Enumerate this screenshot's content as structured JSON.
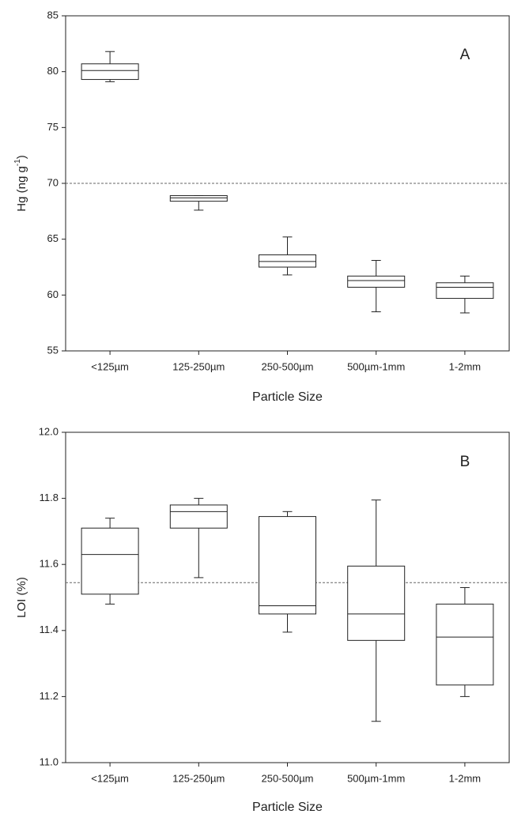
{
  "chart_data": [
    {
      "type": "box",
      "panel": "A",
      "xlabel": "Particle Size",
      "ylabel": "Hg (ng g",
      "ylabel_sup": "-1",
      "ylabel_end": ")",
      "categories": [
        "<125µm",
        "125-250µm",
        "250-500µm",
        "500µm-1mm",
        "1-2mm"
      ],
      "max": [
        81.8,
        68.9,
        65.2,
        63.1,
        61.7
      ],
      "q3": [
        80.7,
        68.9,
        63.6,
        61.7,
        61.1
      ],
      "median": [
        80.1,
        68.7,
        63.0,
        61.3,
        60.7
      ],
      "q1": [
        79.3,
        68.4,
        62.5,
        60.7,
        59.7
      ],
      "min": [
        79.1,
        67.6,
        61.8,
        58.5,
        58.4
      ],
      "reference_line": 70,
      "ylim": [
        55,
        85
      ],
      "yticks": [
        55,
        60,
        65,
        70,
        75,
        80,
        85
      ]
    },
    {
      "type": "box",
      "panel": "B",
      "xlabel": "Particle Size",
      "ylabel": "LOI (%)",
      "categories": [
        "<125µm",
        "125-250µm",
        "250-500µm",
        "500µm-1mm",
        "1-2mm"
      ],
      "max": [
        11.74,
        11.8,
        11.76,
        11.795,
        11.53
      ],
      "q3": [
        11.71,
        11.78,
        11.745,
        11.595,
        11.48
      ],
      "median": [
        11.63,
        11.76,
        11.475,
        11.45,
        11.38
      ],
      "q1": [
        11.51,
        11.71,
        11.45,
        11.37,
        11.235
      ],
      "min": [
        11.48,
        11.56,
        11.395,
        11.125,
        11.2
      ],
      "reference_line": 11.545,
      "ylim": [
        11.0,
        12.0
      ],
      "yticks": [
        {
          "value": 11.0,
          "label": "11.0"
        },
        11.2,
        11.4,
        11.6,
        11.8,
        {
          "value": 12.0,
          "label": "12.0"
        }
      ]
    }
  ]
}
